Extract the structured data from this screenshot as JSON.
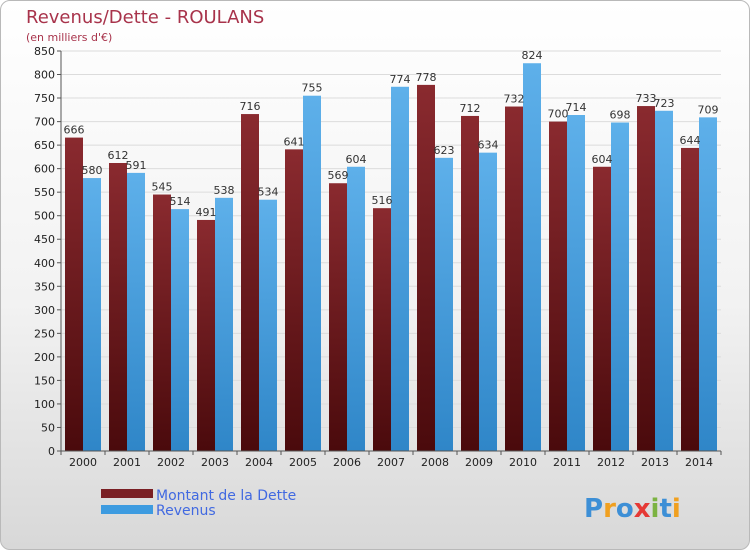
{
  "chart_data": {
    "type": "bar",
    "title": "Revenus/Dette - ROULANS",
    "subtitle": "(en milliers d'€)",
    "categories": [
      "2000",
      "2001",
      "2002",
      "2003",
      "2004",
      "2005",
      "2006",
      "2007",
      "2008",
      "2009",
      "2010",
      "2011",
      "2012",
      "2013",
      "2014"
    ],
    "series": [
      {
        "name": "Montant de la Dette",
        "color": "#7a1f24",
        "values": [
          666,
          612,
          545,
          491,
          716,
          641,
          569,
          516,
          778,
          712,
          732,
          700,
          604,
          733,
          644
        ],
        "labels": [
          "666",
          "612",
          "545",
          "491",
          "716",
          "641",
          "569",
          "516",
          "778",
          "712",
          "732",
          "700",
          "604",
          "733",
          "644"
        ]
      },
      {
        "name": "Revenus",
        "color": "#3d9be0",
        "values": [
          580,
          591,
          514,
          538,
          534,
          755,
          604,
          774,
          623,
          634,
          824,
          714,
          698,
          723,
          709
        ],
        "labels": [
          "580",
          "591",
          "514",
          "538",
          "534",
          "755",
          "604",
          "774",
          "623",
          "634",
          "824",
          "714",
          "698",
          "723",
          "709"
        ]
      }
    ],
    "ylim": [
      0,
      850
    ],
    "ytick_step": 50,
    "grid": true,
    "legend_position": "bottom-left"
  },
  "brand": {
    "logo_text": "Proxiti"
  }
}
